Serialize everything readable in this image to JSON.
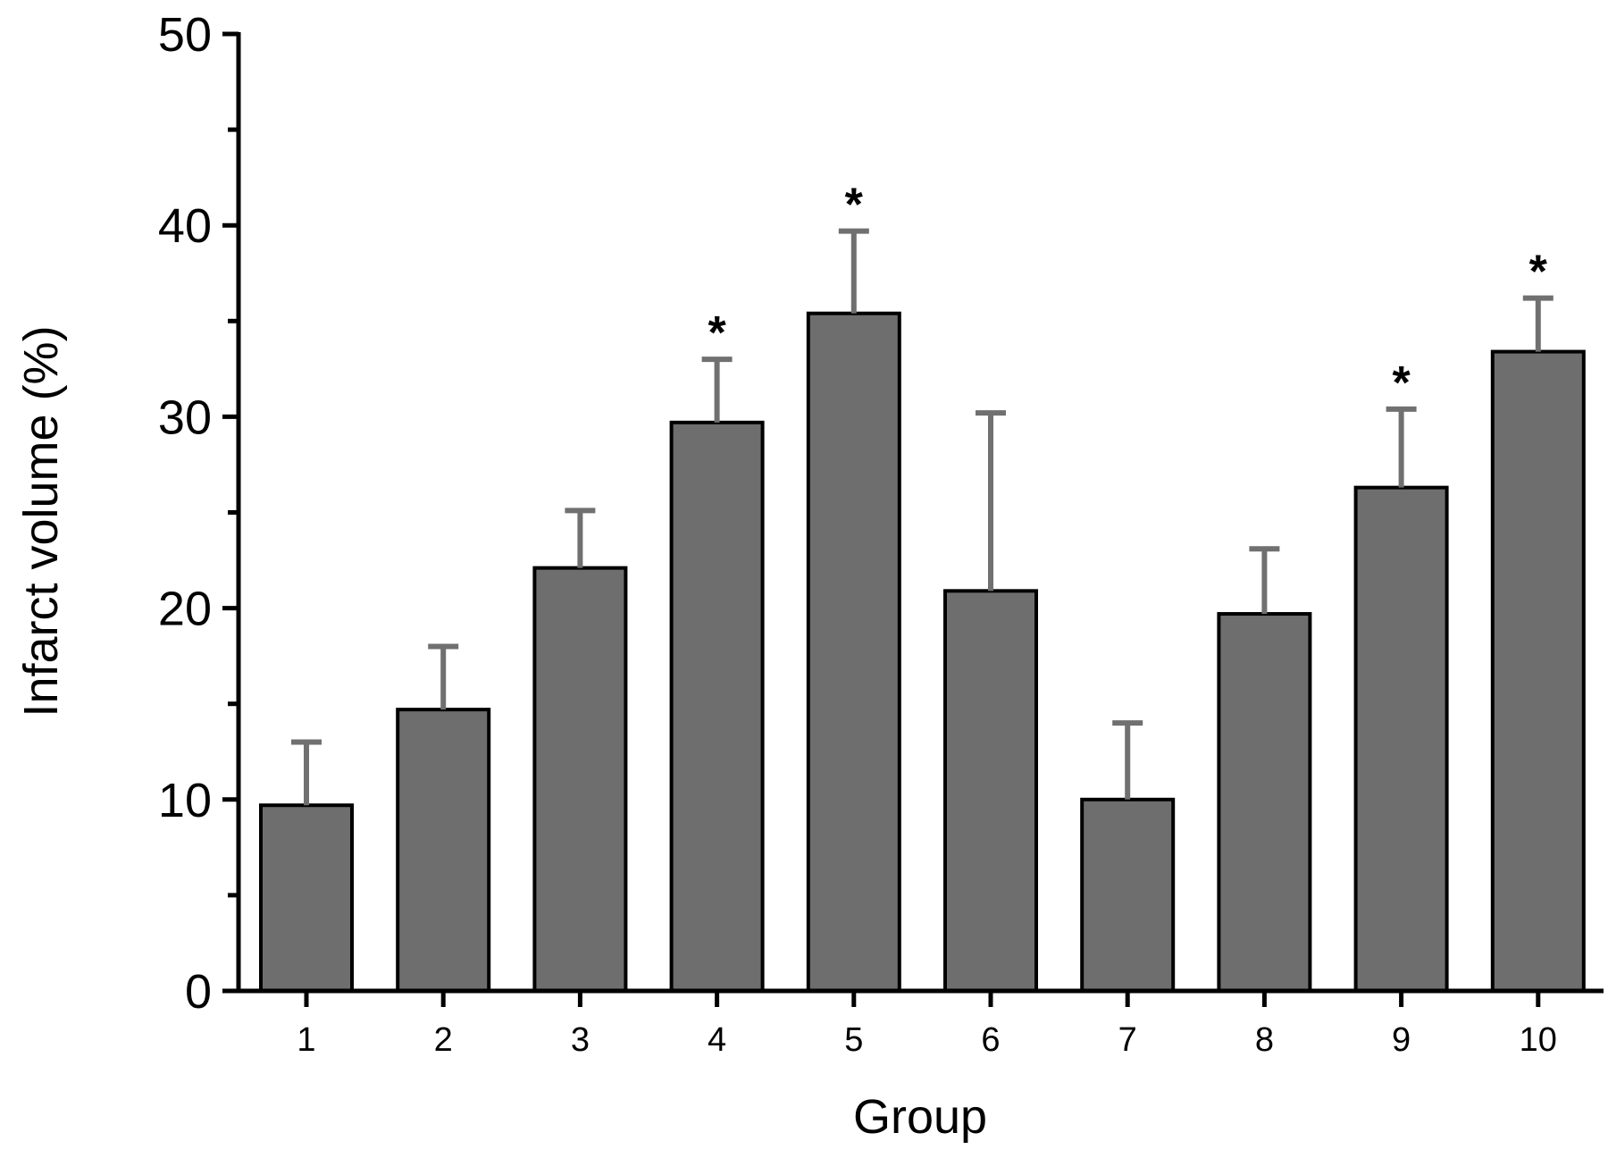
{
  "chart_data": {
    "type": "bar",
    "title": "",
    "xlabel": "Group",
    "ylabel": "Infarct volume (%)",
    "ylim": [
      0,
      50
    ],
    "y_major_ticks": [
      0,
      10,
      20,
      30,
      40,
      50
    ],
    "y_minor_step": 5,
    "grid": false,
    "legend": "none",
    "categories": [
      "1",
      "2",
      "3",
      "4",
      "5",
      "6",
      "7",
      "8",
      "9",
      "10"
    ],
    "values": [
      9.7,
      14.7,
      22.1,
      29.7,
      35.4,
      20.9,
      10.0,
      19.7,
      26.3,
      33.4
    ],
    "error_upper": [
      3.3,
      3.3,
      3.0,
      3.3,
      4.3,
      9.3,
      4.0,
      3.4,
      4.1,
      2.8
    ],
    "significance": [
      "",
      "",
      "",
      "*",
      "*",
      "",
      "",
      "",
      "*",
      "*"
    ],
    "colors": {
      "bar_fill": "#6e6e6e",
      "bar_edge": "#000000",
      "error_bar": "#707070",
      "axis": "#000000"
    }
  }
}
